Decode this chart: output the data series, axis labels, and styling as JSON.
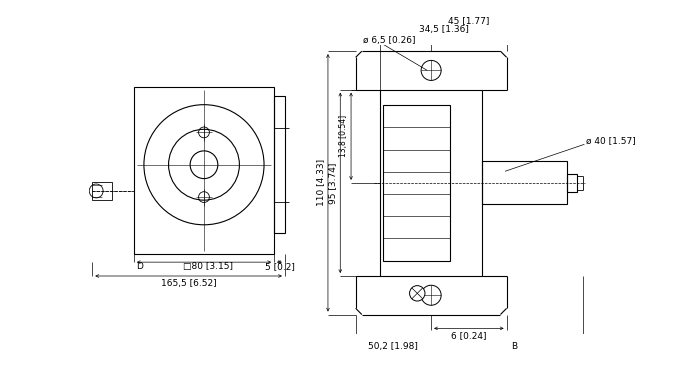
{
  "bg_color": "#ffffff",
  "lc": "#000000",
  "lw": 0.8,
  "dlw": 0.5,
  "fs": 6.5,
  "ann": {
    "top_45": "45 [1.77]",
    "top_345": "34,5 [1.36]",
    "top_phi65": "ø 6,5 [0.26]",
    "left_110": "110 [4.33]",
    "left_95": "95 [3.74]",
    "left_138": "13,8 [0.54]",
    "bot_6": "6 [0.24]",
    "bot_502": "50,2 [1.98]",
    "bot_B": "B",
    "right_phi40": "ø 40 [1.57]",
    "left_D": "D",
    "bot_80": "□80 [3.15]",
    "bot_5": "5 [0.2]",
    "bot_165": "165,5 [6.52]"
  }
}
